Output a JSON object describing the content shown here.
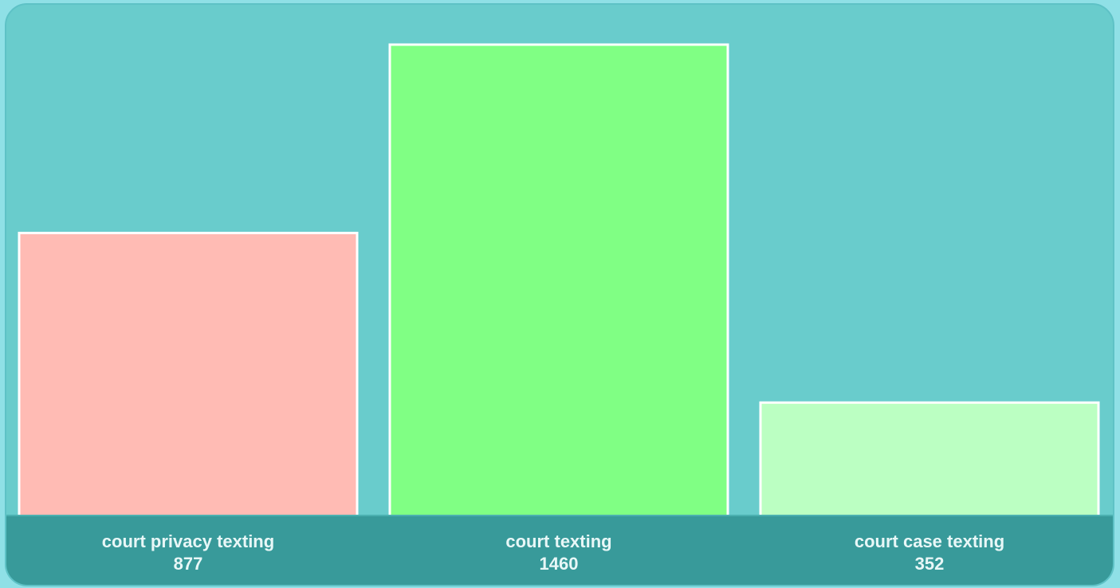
{
  "chart_data": {
    "type": "bar",
    "categories": [
      "court privacy texting",
      "court texting",
      "court case texting"
    ],
    "values": [
      877,
      1460,
      352
    ],
    "colors": [
      "#ffbbb4",
      "#80ff84",
      "#bbffc2"
    ],
    "ylim": [
      0,
      1460
    ],
    "title": "",
    "xlabel": "",
    "ylabel": "",
    "grid": false
  },
  "colors": {
    "background": "#69cccc",
    "footer": "#389a9a",
    "bar_border": "#ffffff"
  }
}
